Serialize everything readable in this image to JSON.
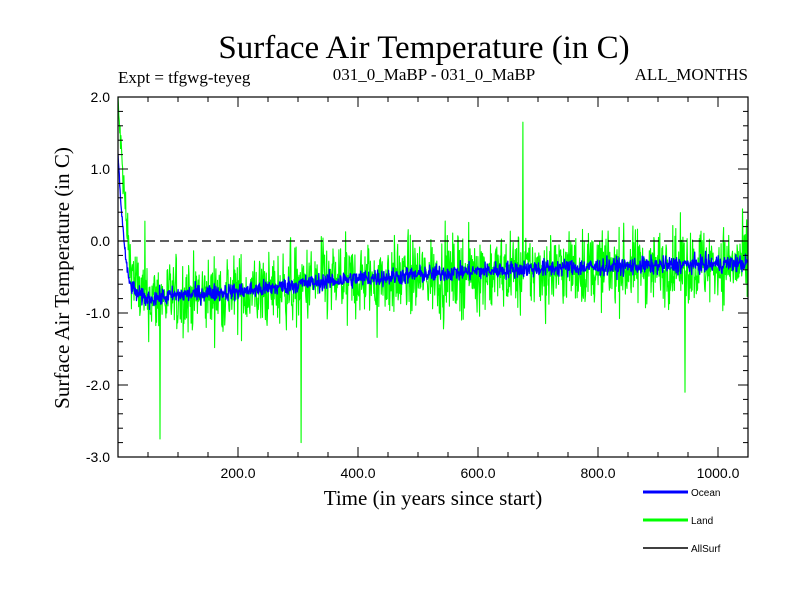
{
  "chart_data": {
    "type": "line",
    "title": "Surface Air Temperature (in C)",
    "subtitle_left": "Expt = tfgwg-teyeg",
    "subtitle_center": "031_0_MaBP - 031_0_MaBP",
    "subtitle_right": "ALL_MONTHS",
    "xlabel": "Time (in years since start)",
    "ylabel": "Surface Air Temperature (in C)",
    "xlim": [
      0,
      1050
    ],
    "ylim": [
      -3.0,
      2.0
    ],
    "x_ticks": [
      200,
      400,
      600,
      800,
      1000
    ],
    "x_tick_labels": [
      "200.0",
      "400.0",
      "600.0",
      "800.0",
      "1000.0"
    ],
    "y_ticks": [
      -3,
      -2,
      -1,
      0,
      1,
      2
    ],
    "y_tick_labels": [
      "-3.0",
      "-2.0",
      "-1.0",
      "0.0",
      "1.0",
      "2.0"
    ],
    "reference_line": {
      "y": 0.0,
      "style": "dashed"
    },
    "series": [
      {
        "name": "Land",
        "color": "#00ff00",
        "x": [
          0,
          5,
          10,
          15,
          20,
          30,
          40,
          50,
          75,
          100,
          150,
          200,
          250,
          300,
          350,
          400,
          450,
          500,
          550,
          600,
          650,
          700,
          750,
          800,
          850,
          900,
          950,
          1000,
          1050
        ],
        "values": [
          1.9,
          1.3,
          0.7,
          0.1,
          -0.3,
          -0.6,
          -0.75,
          -0.8,
          -0.8,
          -0.78,
          -0.75,
          -0.72,
          -0.7,
          -0.62,
          -0.58,
          -0.55,
          -0.52,
          -0.5,
          -0.47,
          -0.45,
          -0.42,
          -0.4,
          -0.4,
          -0.38,
          -0.37,
          -0.36,
          -0.35,
          -0.34,
          -0.33
        ],
        "noise_amplitude": 0.55,
        "extremes": [
          {
            "x": 1,
            "y": 1.9
          },
          {
            "x": 70,
            "y": -2.75
          },
          {
            "x": 305,
            "y": -2.8
          },
          {
            "x": 675,
            "y": 1.65
          },
          {
            "x": 945,
            "y": -2.1
          }
        ]
      },
      {
        "name": "Ocean",
        "color": "#0000ff",
        "x": [
          0,
          5,
          10,
          15,
          20,
          30,
          40,
          50,
          75,
          100,
          150,
          200,
          250,
          300,
          350,
          400,
          450,
          500,
          550,
          600,
          650,
          700,
          750,
          800,
          850,
          900,
          950,
          1000,
          1050
        ],
        "values": [
          1.2,
          0.5,
          0.0,
          -0.4,
          -0.6,
          -0.72,
          -0.78,
          -0.8,
          -0.78,
          -0.75,
          -0.72,
          -0.7,
          -0.66,
          -0.6,
          -0.56,
          -0.52,
          -0.5,
          -0.47,
          -0.44,
          -0.42,
          -0.4,
          -0.38,
          -0.37,
          -0.36,
          -0.35,
          -0.34,
          -0.33,
          -0.32,
          -0.31
        ],
        "noise_amplitude": 0.13
      },
      {
        "name": "AllSurf",
        "color": "#000000",
        "x": [],
        "values": []
      }
    ],
    "legend": {
      "placement": "bottom-right",
      "entries": [
        {
          "label": "Ocean",
          "color": "#0000ff"
        },
        {
          "label": "Land",
          "color": "#00ff00"
        },
        {
          "label": "AllSurf",
          "color": "#000000"
        }
      ]
    }
  }
}
